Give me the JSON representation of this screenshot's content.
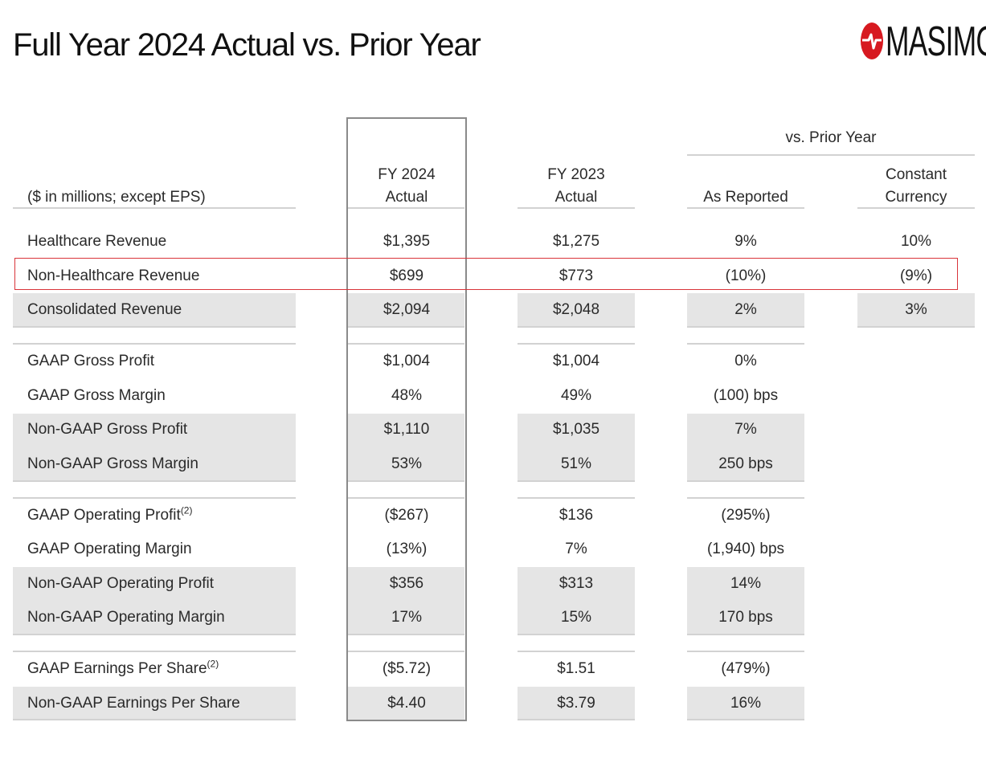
{
  "title": "Full Year 2024 Actual vs. Prior Year",
  "logo": {
    "wordmark": "Masimo",
    "mark_icon": "masimo-logo-icon",
    "brand_color": "#d71920"
  },
  "header": {
    "units_label": "($ in millions; except EPS)",
    "vs_prior_year": "vs. Prior Year",
    "col_fy2024_line1": "FY 2024",
    "col_fy2024_line2": "Actual",
    "col_fy2023_line1": "FY 2023",
    "col_fy2023_line2": "Actual",
    "col_as_reported": "As Reported",
    "col_cc_line1": "Constant",
    "col_cc_line2": "Currency"
  },
  "rows": [
    {
      "label": "Healthcare Revenue",
      "fy2024": "$1,395",
      "fy2023": "$1,275",
      "as_reported": "9%",
      "constant_currency": "10%"
    },
    {
      "label": "Non-Healthcare Revenue",
      "fy2024": "$699",
      "fy2023": "$773",
      "as_reported": "(10%)",
      "constant_currency": "(9%)"
    },
    {
      "label": "Consolidated Revenue",
      "fy2024": "$2,094",
      "fy2023": "$2,048",
      "as_reported": "2%",
      "constant_currency": "3%"
    },
    {
      "label": "GAAP Gross Profit",
      "fy2024": "$1,004",
      "fy2023": "$1,004",
      "as_reported": "0%"
    },
    {
      "label": "GAAP Gross Margin",
      "fy2024": "48%",
      "fy2023": "49%",
      "as_reported": "(100) bps"
    },
    {
      "label": "Non-GAAP Gross Profit",
      "fy2024": "$1,110",
      "fy2023": "$1,035",
      "as_reported": "7%"
    },
    {
      "label": "Non-GAAP Gross Margin",
      "fy2024": "53%",
      "fy2023": "51%",
      "as_reported": "250 bps"
    },
    {
      "label": "GAAP Operating Profit",
      "footnote": "(2)",
      "fy2024": "($267)",
      "fy2023": "$136",
      "as_reported": "(295%)"
    },
    {
      "label": "GAAP Operating Margin",
      "fy2024": "(13%)",
      "fy2023": "7%",
      "as_reported": "(1,940) bps"
    },
    {
      "label": "Non-GAAP Operating Profit",
      "fy2024": "$356",
      "fy2023": "$313",
      "as_reported": "14%"
    },
    {
      "label": "Non-GAAP Operating Margin",
      "fy2024": "17%",
      "fy2023": "15%",
      "as_reported": "170 bps"
    },
    {
      "label": "GAAP Earnings Per Share",
      "footnote": "(2)",
      "fy2024": "($5.72)",
      "fy2023": "$1.51",
      "as_reported": "(479%)"
    },
    {
      "label": "Non-GAAP Earnings Per Share",
      "fy2024": "$4.40",
      "fy2023": "$3.79",
      "as_reported": "16%"
    }
  ],
  "highlight_color": "#d9343a"
}
